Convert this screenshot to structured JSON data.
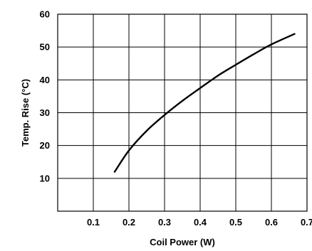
{
  "chart_data": {
    "type": "line",
    "title": "",
    "xlabel": "Coil Power (W)",
    "ylabel": "Temp. Rise (°C)",
    "xlim": [
      0,
      0.7
    ],
    "ylim": [
      0,
      60
    ],
    "x_ticks": [
      "0.1",
      "0.2",
      "0.3",
      "0.4",
      "0.5",
      "0.6",
      "0.7"
    ],
    "y_ticks": [
      "10",
      "20",
      "30",
      "40",
      "50",
      "60"
    ],
    "grid": true,
    "legend": "none",
    "series": [
      {
        "x": [
          0.16,
          0.2,
          0.25,
          0.3,
          0.35,
          0.4,
          0.45,
          0.5,
          0.55,
          0.6,
          0.665
        ],
        "y": [
          12,
          18.5,
          24.5,
          29.3,
          33.6,
          37.5,
          41.3,
          44.6,
          47.8,
          50.8,
          54
        ]
      }
    ]
  }
}
